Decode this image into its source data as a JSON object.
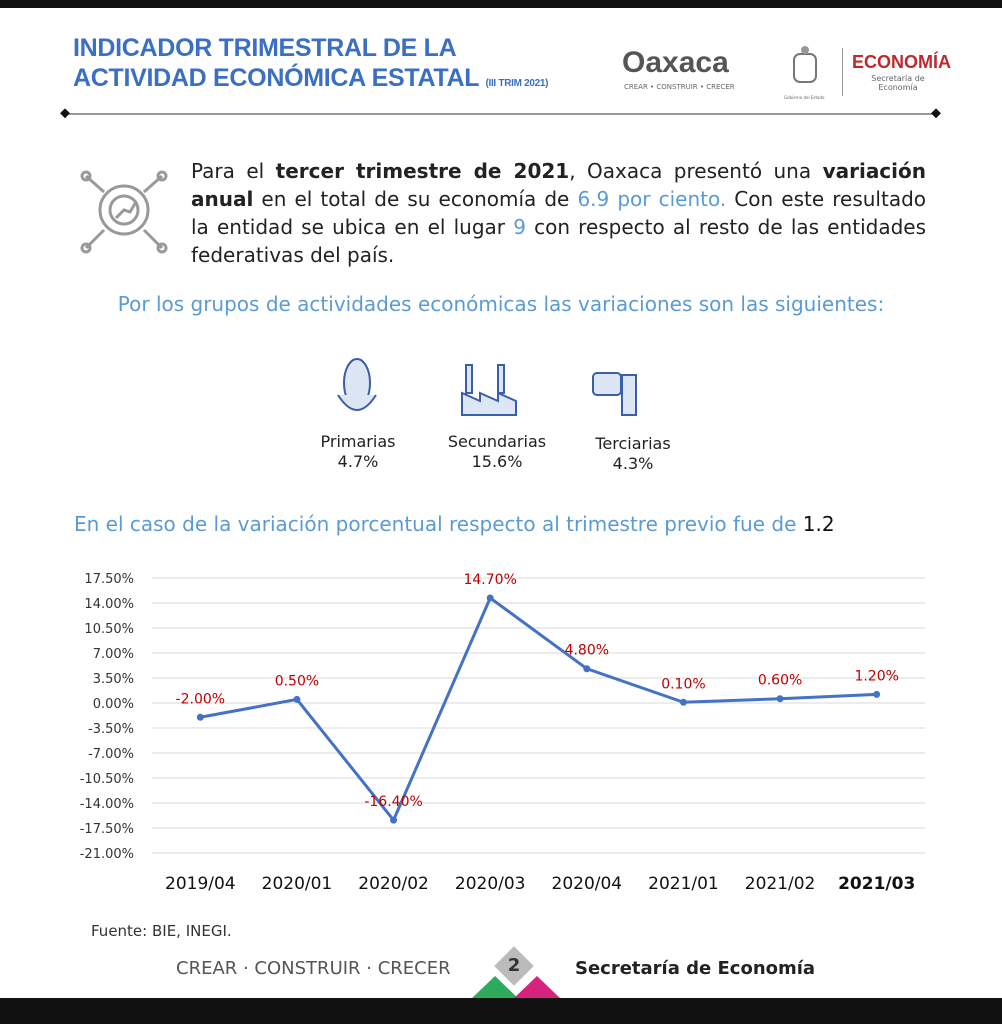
{
  "header": {
    "title_line1": "INDICADOR TRIMESTRAL DE LA",
    "title_line2": "ACTIVIDAD ECONÓMICA ESTATAL",
    "period": "(III TRIM 2021)",
    "logo_name": "Oaxaca",
    "logo_motto": "CREAR • CONSTRUIR • CRECER",
    "logo_government": "Gobierno del Estado",
    "ministry": "ECONOMÍA",
    "ministry_sub": "Secretaría de Economía"
  },
  "intro": [
    "Para el ",
    "tercer trimestre de 2021",
    ", Oaxaca presentó una ",
    "variación anual",
    " en el total de su economía de ",
    "6.9 por ciento.",
    " Con este resultado la entidad se ubica en el lugar ",
    "9",
    " con respecto al resto de las entidades federativas del país."
  ],
  "groups_heading": "Por los grupos de actividades económicas las variaciones son las siguientes:",
  "sectors": [
    {
      "name": "Primarias",
      "value": "4.7%"
    },
    {
      "name": "Secundarias",
      "value": "15.6%"
    },
    {
      "name": "Terciarias",
      "value": "4.3%"
    }
  ],
  "chart_heading": {
    "text": "En el caso de la variación porcentual respecto al trimestre previo fue de ",
    "value": "1.2"
  },
  "chart_data": {
    "type": "line",
    "categories": [
      "2019/04",
      "2020/01",
      "2020/02",
      "2020/03",
      "2020/04",
      "2021/01",
      "2021/02",
      "2021/03"
    ],
    "series": [
      {
        "name": "Variación porcentual",
        "color": "#4472c4",
        "values": [
          -2.0,
          0.5,
          -16.4,
          14.7,
          4.8,
          0.1,
          0.6,
          1.2
        ],
        "value_labels": [
          "-2.00%",
          "0.50%",
          "-16.40%",
          "14.70%",
          "4.80%",
          "0.10%",
          "0.60%",
          "1.20%"
        ]
      }
    ],
    "label_color": "#c00000",
    "ylim": [
      -21,
      17.5
    ],
    "yticks": [
      {
        "value": 17.5,
        "label": "17.50%"
      },
      {
        "value": 14,
        "label": "14.00%"
      },
      {
        "value": 10.5,
        "label": "10.50%"
      },
      {
        "value": 7,
        "label": "7.00%"
      },
      {
        "value": 3.5,
        "label": "3.50%"
      },
      {
        "value": 0,
        "label": "0.00%"
      },
      {
        "value": -3.5,
        "label": "-3.50%"
      },
      {
        "value": -7,
        "label": "-7.00%"
      },
      {
        "value": -10.5,
        "label": "-10.50%"
      },
      {
        "value": -14,
        "label": "-14.00%"
      },
      {
        "value": -17.5,
        "label": "-17.50%"
      },
      {
        "value": -21,
        "label": "-21.00%"
      }
    ],
    "grid": true
  },
  "footer": {
    "source": "Fuente: BIE, INEGI.",
    "motto": "CREAR · CONSTRUIR · CRECER",
    "page": "2",
    "ministry": "Secretaría de Economía"
  }
}
